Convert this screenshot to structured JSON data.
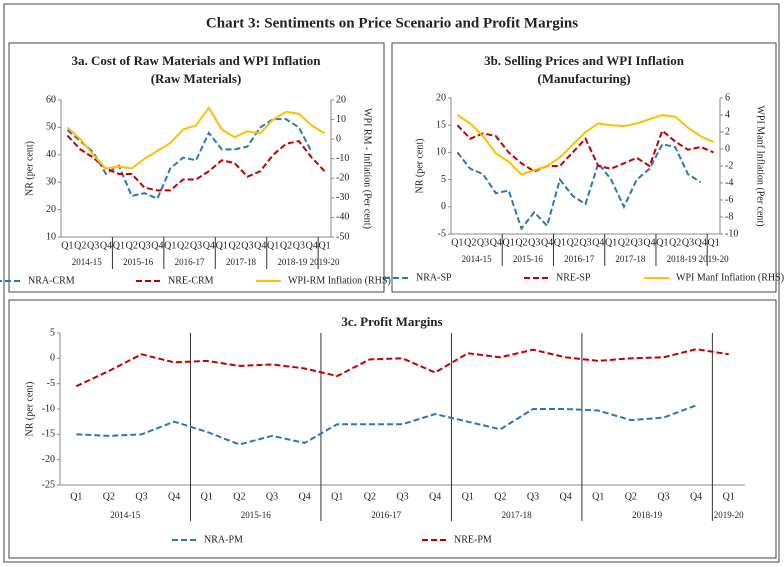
{
  "title": "Chart 3: Sentiments on Price Scenario and Profit Margins",
  "chart_data": [
    {
      "type": "line",
      "title": "3a. Cost of Raw Materials and WPI Inflation",
      "subtitle": "(Raw Materials)",
      "y_label": "NR (per cent)",
      "y2_label": "WPI RM - Inflation (Per cent)",
      "categories": [
        "Q1",
        "Q2",
        "Q3",
        "Q4",
        "Q1",
        "Q2",
        "Q3",
        "Q4",
        "Q1",
        "Q2",
        "Q3",
        "Q4",
        "Q1",
        "Q2",
        "Q3",
        "Q4",
        "Q1",
        "Q2",
        "Q3",
        "Q4",
        "Q1"
      ],
      "groups": [
        "2014-15",
        "2015-16",
        "2016-17",
        "2017-18",
        "2018-19",
        "2019-20"
      ],
      "ylim": [
        10,
        60
      ],
      "yticks": [
        10,
        20,
        30,
        40,
        50,
        60
      ],
      "y2lim": [
        -50,
        20
      ],
      "y2ticks": [
        -50,
        -40,
        -30,
        -20,
        -10,
        0,
        10,
        20
      ],
      "series": [
        {
          "name": "NRA-CRM",
          "color": "#2e75b6",
          "dash": true,
          "values": [
            49,
            45,
            41,
            33,
            36,
            25,
            26,
            24,
            35,
            39,
            38,
            48,
            42,
            42,
            43,
            50,
            53,
            53,
            50,
            41,
            null
          ]
        },
        {
          "name": "NRE-CRM",
          "color": "#c00000",
          "dash": true,
          "values": [
            47,
            42,
            39,
            35,
            33,
            33,
            28,
            27,
            27,
            31,
            31,
            34,
            38,
            37,
            32,
            34,
            40,
            44,
            45,
            39,
            34
          ]
        },
        {
          "name": "WPI-RM Inflation (RHS)",
          "color": "#ffc000",
          "dash": false,
          "axis": "y2",
          "values": [
            6,
            0,
            -8,
            -15,
            -14,
            -15,
            -10,
            -6,
            -2,
            5,
            7,
            16,
            5,
            1,
            4,
            3,
            10,
            14,
            13,
            7,
            3
          ]
        }
      ]
    },
    {
      "type": "line",
      "title": "3b. Selling Prices and WPI Inflation",
      "subtitle": "(Manufacturing)",
      "y_label": "NR (per cent)",
      "y2_label": "WPI Manf Inflation (Per cent)",
      "categories": [
        "Q1",
        "Q2",
        "Q3",
        "Q4",
        "Q1",
        "Q2",
        "Q3",
        "Q4",
        "Q1",
        "Q2",
        "Q3",
        "Q4",
        "Q1",
        "Q2",
        "Q3",
        "Q4",
        "Q1",
        "Q2",
        "Q3",
        "Q4",
        "Q1"
      ],
      "groups": [
        "2014-15",
        "2015-16",
        "2016-17",
        "2017-18",
        "2018-19",
        "2019-20"
      ],
      "ylim": [
        -5,
        20
      ],
      "yticks": [
        -5,
        0,
        5,
        10,
        15,
        20
      ],
      "y2lim": [
        -10,
        6
      ],
      "y2ticks": [
        -10,
        -8,
        -6,
        -4,
        -2,
        0,
        2,
        4,
        6
      ],
      "series": [
        {
          "name": "NRA-SP",
          "color": "#2e75b6",
          "dash": true,
          "values": [
            10,
            7,
            6,
            2.5,
            3,
            -4,
            -1,
            -3.5,
            5,
            2,
            0.5,
            8,
            5,
            0,
            5,
            7,
            11.5,
            11,
            6,
            4.5,
            null
          ]
        },
        {
          "name": "NRE-SP",
          "color": "#c00000",
          "dash": true,
          "values": [
            15,
            12.5,
            13.5,
            13,
            10,
            8,
            6.5,
            7.5,
            7.5,
            10,
            12.5,
            7.5,
            7,
            8,
            9,
            7.5,
            14,
            12,
            10.5,
            11,
            10
          ]
        },
        {
          "name": "WPI Manf Inflation (RHS)",
          "color": "#ffc000",
          "dash": false,
          "axis": "y2",
          "values": [
            4,
            3,
            1.5,
            -0.5,
            -1.5,
            -3,
            -2.5,
            -2,
            -1,
            0.5,
            2,
            3,
            2.8,
            2.7,
            3,
            3.5,
            4,
            3.8,
            2.5,
            1.5,
            0.8
          ]
        }
      ]
    },
    {
      "type": "line",
      "title": "3c. Profit Margins",
      "y_label": "NR (per cent)",
      "categories": [
        "Q1",
        "Q2",
        "Q3",
        "Q4",
        "Q1",
        "Q2",
        "Q3",
        "Q4",
        "Q1",
        "Q2",
        "Q3",
        "Q4",
        "Q1",
        "Q2",
        "Q3",
        "Q4",
        "Q1",
        "Q2",
        "Q3",
        "Q4",
        "Q1"
      ],
      "groups": [
        "2014-15",
        "2015-16",
        "2016-17",
        "2017-18",
        "2018-19",
        "2019-20"
      ],
      "ylim": [
        -25,
        5
      ],
      "yticks": [
        -25,
        -20,
        -15,
        -10,
        -5,
        0,
        5
      ],
      "series": [
        {
          "name": "NRA-PM",
          "color": "#2e75b6",
          "dash": true,
          "values": [
            -15,
            -15.3,
            -15,
            -12.5,
            -14.5,
            -17,
            -15.3,
            -16.7,
            -13,
            -13,
            -13,
            -11,
            -12.5,
            -14,
            -10,
            -10,
            -10.3,
            -12.2,
            -11.7,
            -9.3,
            null
          ]
        },
        {
          "name": "NRE-PM",
          "color": "#c00000",
          "dash": true,
          "values": [
            -5.5,
            -2.5,
            0.8,
            -0.8,
            -0.5,
            -1.5,
            -1.2,
            -2,
            -3.5,
            -0.2,
            0,
            -2.8,
            1,
            0.2,
            1.7,
            0.2,
            -0.5,
            0,
            0.2,
            1.8,
            0.8
          ]
        }
      ]
    }
  ]
}
